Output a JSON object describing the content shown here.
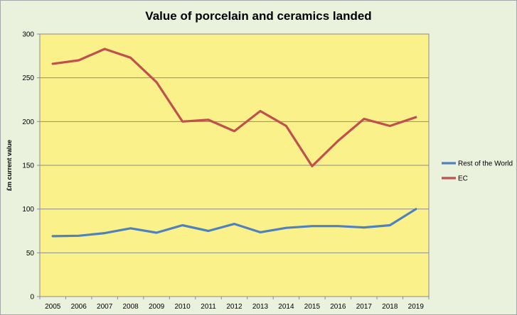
{
  "chart_data": {
    "type": "line",
    "title": "Value of porcelain and ceramics landed",
    "xlabel": "",
    "ylabel": "£m current value",
    "categories": [
      "2005",
      "2006",
      "2007",
      "2008",
      "2009",
      "2010",
      "2011",
      "2012",
      "2013",
      "2014",
      "2015",
      "2016",
      "2017",
      "2018",
      "2019"
    ],
    "yticks": [
      "0",
      "50",
      "100",
      "150",
      "200",
      "250",
      "300"
    ],
    "ylim": [
      0,
      300
    ],
    "grid": true,
    "legend_position": "right",
    "series": [
      {
        "name": "Rest of the World",
        "color": "#4f81bd",
        "values": [
          69,
          69.5,
          72.5,
          78,
          73,
          81.5,
          75,
          83,
          73.5,
          78.5,
          80.5,
          80.5,
          79,
          81.5,
          100
        ]
      },
      {
        "name": "EC",
        "color": "#c0504d",
        "values": [
          266,
          270,
          283,
          273,
          245,
          200,
          202,
          189,
          212,
          195,
          149,
          178,
          203,
          195,
          205
        ]
      }
    ],
    "plot_background": "#fbf18a",
    "chart_background": "#eaf1dd"
  }
}
